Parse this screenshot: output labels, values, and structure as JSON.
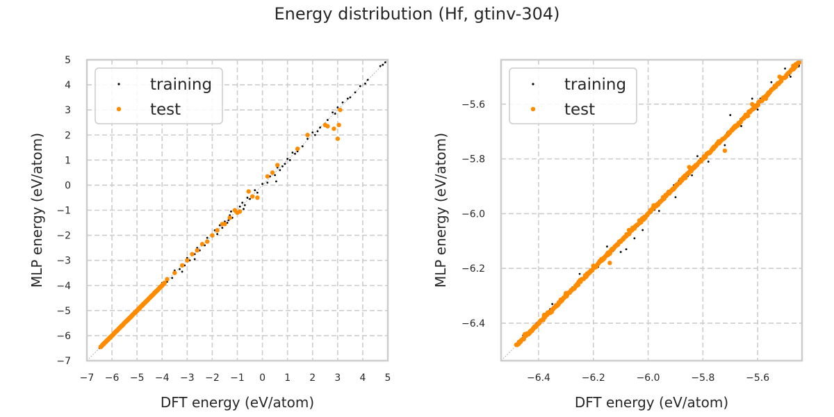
{
  "figure": {
    "title": "Energy distribution (Hf, gtinv-304)"
  },
  "colors": {
    "training": "#000000",
    "test": "#ff8c00",
    "grid": "#cccccc",
    "frame": "#cccccc",
    "diagonal": "#a0a0a0"
  },
  "chart_data": [
    {
      "type": "scatter",
      "title": "",
      "xlabel": "DFT energy (eV/atom)",
      "ylabel": "MLP energy (eV/atom)",
      "xlim": [
        -7,
        5
      ],
      "ylim": [
        -7,
        5
      ],
      "xticks": [
        -7,
        -6,
        -5,
        -4,
        -3,
        -2,
        -1,
        0,
        1,
        2,
        3,
        4,
        5
      ],
      "yticks": [
        -7,
        -6,
        -5,
        -4,
        -3,
        -2,
        -1,
        0,
        1,
        2,
        3,
        4,
        5
      ],
      "xtick_labels": [
        "−7",
        "−6",
        "−5",
        "−4",
        "−3",
        "−2",
        "−1",
        "0",
        "1",
        "2",
        "3",
        "4",
        "5"
      ],
      "ytick_labels": [
        "−7",
        "−6",
        "−5",
        "−4",
        "−3",
        "−2",
        "−1",
        "0",
        "1",
        "2",
        "3",
        "4",
        "5"
      ],
      "grid": true,
      "reference_line": "y = x",
      "legend": {
        "position": "top-left",
        "entries": [
          "training",
          "test"
        ]
      },
      "series": [
        {
          "name": "training",
          "dense_band": {
            "x_range": [
              -6.5,
              -5.4
            ],
            "spread": 0.03
          },
          "points": [
            [
              -5.2,
              -5.22
            ],
            [
              -4.8,
              -4.78
            ],
            [
              -4.5,
              -4.52
            ],
            [
              -4.2,
              -4.25
            ],
            [
              -4.0,
              -3.9
            ],
            [
              -3.8,
              -3.85
            ],
            [
              -3.6,
              -3.7
            ],
            [
              -3.5,
              -3.4
            ],
            [
              -3.3,
              -3.35
            ],
            [
              -3.1,
              -3.2
            ],
            [
              -3.0,
              -2.9
            ],
            [
              -2.9,
              -3.0
            ],
            [
              -2.7,
              -2.75
            ],
            [
              -2.6,
              -2.5
            ],
            [
              -2.5,
              -2.6
            ],
            [
              -2.3,
              -2.4
            ],
            [
              -2.2,
              -2.1
            ],
            [
              -2.0,
              -2.05
            ],
            [
              -1.9,
              -1.8
            ],
            [
              -1.8,
              -1.95
            ],
            [
              -1.7,
              -1.6
            ],
            [
              -1.6,
              -1.7
            ],
            [
              -1.5,
              -1.45
            ],
            [
              -1.4,
              -1.5
            ],
            [
              -1.3,
              -1.2
            ],
            [
              -1.2,
              -1.3
            ],
            [
              -1.1,
              -1.0
            ],
            [
              -1.0,
              -1.1
            ],
            [
              -0.9,
              -0.85
            ],
            [
              -0.8,
              -0.7
            ],
            [
              -0.7,
              -0.8
            ],
            [
              -0.6,
              -0.5
            ],
            [
              -0.5,
              -0.55
            ],
            [
              -0.3,
              -0.2
            ],
            [
              -0.2,
              -0.3
            ],
            [
              0.0,
              0.05
            ],
            [
              0.2,
              0.1
            ],
            [
              0.3,
              0.35
            ],
            [
              0.5,
              0.4
            ],
            [
              0.6,
              0.7
            ],
            [
              0.7,
              0.6
            ],
            [
              0.8,
              0.75
            ],
            [
              0.9,
              0.85
            ],
            [
              1.0,
              1.05
            ],
            [
              1.1,
              1.0
            ],
            [
              1.2,
              1.3
            ],
            [
              1.3,
              1.25
            ],
            [
              1.4,
              1.35
            ],
            [
              1.6,
              1.55
            ],
            [
              1.8,
              1.85
            ],
            [
              2.0,
              2.1
            ],
            [
              2.2,
              2.15
            ],
            [
              2.3,
              2.3
            ],
            [
              2.5,
              2.45
            ],
            [
              2.6,
              2.6
            ],
            [
              2.8,
              2.9
            ],
            [
              3.0,
              3.1
            ],
            [
              3.2,
              3.3
            ],
            [
              3.4,
              3.45
            ],
            [
              3.5,
              3.5
            ],
            [
              3.7,
              3.7
            ],
            [
              3.9,
              3.95
            ],
            [
              4.1,
              4.05
            ],
            [
              4.2,
              4.2
            ],
            [
              4.7,
              4.75
            ],
            [
              4.8,
              4.8
            ],
            [
              4.9,
              4.9
            ],
            [
              -1.25,
              -1.05
            ],
            [
              -3.2,
              -3.45
            ],
            [
              -2.7,
              -2.95
            ],
            [
              -1.35,
              -1.4
            ],
            [
              -0.75,
              -0.95
            ],
            [
              0.55,
              0.15
            ],
            [
              2.1,
              2.0
            ],
            [
              2.9,
              2.85
            ]
          ]
        },
        {
          "name": "test",
          "dense_band": {
            "x_range": [
              -6.45,
              -3.9
            ],
            "spread": 0.02
          },
          "points": [
            [
              -3.8,
              -3.75
            ],
            [
              -3.5,
              -3.5
            ],
            [
              -3.2,
              -3.2
            ],
            [
              -3.0,
              -3.0
            ],
            [
              -2.8,
              -2.75
            ],
            [
              -2.6,
              -2.6
            ],
            [
              -2.4,
              -2.35
            ],
            [
              -2.2,
              -2.25
            ],
            [
              -2.0,
              -2.0
            ],
            [
              -1.8,
              -1.8
            ],
            [
              -1.6,
              -1.55
            ],
            [
              -1.5,
              -1.55
            ],
            [
              -1.3,
              -1.3
            ],
            [
              -1.1,
              -1.0
            ],
            [
              -1.0,
              -1.1
            ],
            [
              -0.9,
              -1.05
            ],
            [
              -0.55,
              -0.25
            ],
            [
              -0.4,
              -0.45
            ],
            [
              -0.2,
              -0.5
            ],
            [
              0.2,
              0.35
            ],
            [
              0.4,
              0.5
            ],
            [
              0.6,
              0.8
            ],
            [
              1.4,
              1.45
            ],
            [
              1.8,
              2.0
            ],
            [
              2.5,
              2.4
            ],
            [
              2.6,
              2.35
            ],
            [
              2.85,
              2.25
            ],
            [
              3.1,
              3.0
            ],
            [
              3.05,
              2.4
            ],
            [
              3.0,
              1.85
            ]
          ]
        }
      ]
    },
    {
      "type": "scatter",
      "title": "",
      "xlabel": "DFT energy (eV/atom)",
      "ylabel": "MLP energy (eV/atom)",
      "xlim": [
        -6.537,
        -5.438
      ],
      "ylim": [
        -6.537,
        -5.438
      ],
      "xticks": [
        -6.4,
        -6.2,
        -6.0,
        -5.8,
        -5.6
      ],
      "yticks": [
        -6.4,
        -6.2,
        -6.0,
        -5.8,
        -5.6
      ],
      "xtick_labels": [
        "−6.4",
        "−6.2",
        "−6.0",
        "−5.8",
        "−5.6"
      ],
      "ytick_labels": [
        "−6.4",
        "−6.2",
        "−6.0",
        "−5.8",
        "−5.6"
      ],
      "grid": true,
      "reference_line": "y = x",
      "legend": {
        "position": "top-left",
        "entries": [
          "training",
          "test"
        ]
      },
      "series": [
        {
          "name": "training",
          "dense_band": {
            "x_range": [
              -6.48,
              -5.44
            ],
            "spread": 0.012
          },
          "points": [
            [
              -6.1,
              -6.14
            ],
            [
              -6.05,
              -6.09
            ],
            [
              -6.02,
              -6.06
            ],
            [
              -5.96,
              -5.99
            ],
            [
              -5.9,
              -5.94
            ],
            [
              -5.84,
              -5.86
            ],
            [
              -5.78,
              -5.81
            ],
            [
              -5.72,
              -5.75
            ],
            [
              -5.66,
              -5.68
            ],
            [
              -5.6,
              -5.62
            ],
            [
              -5.55,
              -5.52
            ],
            [
              -5.5,
              -5.47
            ],
            [
              -5.48,
              -5.5
            ],
            [
              -5.62,
              -5.58
            ],
            [
              -5.82,
              -5.79
            ],
            [
              -6.15,
              -6.12
            ],
            [
              -6.25,
              -6.22
            ],
            [
              -6.35,
              -6.33
            ],
            [
              -5.7,
              -5.64
            ],
            [
              -6.08,
              -6.13
            ]
          ]
        },
        {
          "name": "test",
          "dense_band": {
            "x_range": [
              -6.48,
              -5.44
            ],
            "spread": 0.008
          },
          "points": [
            [
              -6.14,
              -6.18
            ],
            [
              -5.72,
              -5.77
            ],
            [
              -6.3,
              -6.29
            ],
            [
              -6.2,
              -6.19
            ],
            [
              -6.07,
              -6.06
            ],
            [
              -5.98,
              -5.97
            ],
            [
              -5.85,
              -5.83
            ],
            [
              -5.62,
              -5.6
            ],
            [
              -5.57,
              -5.58
            ],
            [
              -5.52,
              -5.5
            ],
            [
              -5.47,
              -5.46
            ],
            [
              -6.45,
              -6.44
            ],
            [
              -6.38,
              -6.37
            ]
          ]
        }
      ]
    }
  ]
}
